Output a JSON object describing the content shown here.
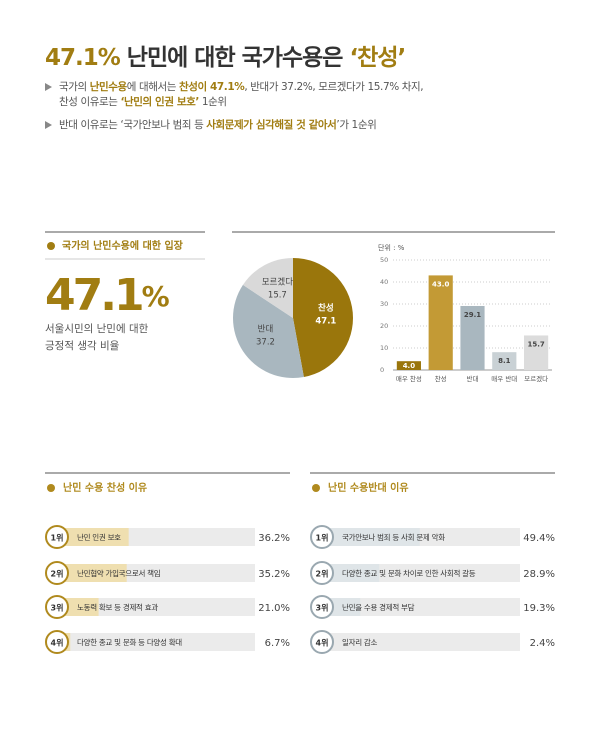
{
  "header": {
    "title": [
      {
        "text": "47.1%",
        "em": true
      },
      {
        "text": " 난민에 대한 국가수용은 "
      },
      {
        "text": "‘찬성’",
        "em": true
      }
    ],
    "bullets": [
      [
        [
          {
            "text": "국가의 "
          },
          {
            "text": "난민수용",
            "em": true
          },
          {
            "text": "에 대해서는 "
          },
          {
            "text": "찬성이 47.1%",
            "em": true
          },
          {
            "text": ", 반대가 37.2%, 모르겠다가 15.7% 차지,"
          }
        ],
        [
          {
            "text": "찬성 이유로는 "
          },
          {
            "text": "‘난민의 인권 보호’",
            "em": true
          },
          {
            "text": " 1순위"
          }
        ]
      ],
      [
        [
          {
            "text": "반대 이유로는 ‘국가안보나 범죄 등 "
          },
          {
            "text": "사회문제가 심각해질 것 같아서",
            "em": true
          },
          {
            "text": "’가 1순위"
          }
        ]
      ]
    ]
  },
  "stance": {
    "title": "국가의 난민수용에 대한 입장",
    "value": "47.1",
    "unit": "%",
    "desc": [
      "서울시민의 난민에 대한",
      "긍정적 생각 비율"
    ]
  },
  "chart_data": [
    {
      "type": "pie",
      "categories": [
        "찬성",
        "반대",
        "모르겠다"
      ],
      "values": [
        47.1,
        37.2,
        15.7
      ],
      "colors": [
        "#9a760c",
        "#a9b7bf",
        "#d9d9d9"
      ],
      "label_colors": [
        "#ffffff",
        "#444444",
        "#444444"
      ]
    },
    {
      "type": "bar",
      "unit_label": "단위 : %",
      "categories": [
        "매우 찬성",
        "찬성",
        "반대",
        "매우 반대",
        "모르겠다"
      ],
      "values": [
        4.0,
        43.0,
        29.1,
        8.1,
        15.7
      ],
      "value_labels": [
        "4.0",
        "43.0",
        "29.1",
        "8.1",
        "15.7"
      ],
      "colors": [
        "#9a760c",
        "#c39a35",
        "#a9b7bf",
        "#c9d1d5",
        "#dcdcdc"
      ],
      "label_colors": [
        "#ffffff",
        "#ffffff",
        "#444444",
        "#444444",
        "#444444"
      ],
      "ylim": [
        0,
        50
      ],
      "yticks": [
        0,
        10,
        20,
        30,
        40,
        50
      ],
      "grid": true
    },
    {
      "type": "hbar",
      "title": "난민 수용 찬성 이유",
      "ranks": [
        "1위",
        "2위",
        "3위",
        "4위"
      ],
      "categories": [
        "난민 인권 보호",
        "난민협약 가입국으로서 책임",
        "노동력 확보 등 경제적 효과",
        "다양한 종교 및 문화 등 다양성 확대"
      ],
      "values": [
        36.2,
        35.2,
        21.0,
        6.7
      ],
      "value_labels": [
        "36.2%",
        "35.2%",
        "21.0%",
        "6.7%"
      ],
      "xlim": [
        0,
        100
      ],
      "color": "#efdfb0",
      "track_color": "#ebebeb",
      "accent": "#b08a1e"
    },
    {
      "type": "hbar",
      "title": "난민 수용반대 이유",
      "ranks": [
        "1위",
        "2위",
        "3위",
        "4위"
      ],
      "categories": [
        "국가안보나 범죄 등 사회 문제 악화",
        "다양한 종교 및 문화 차이로 인한 사회적 갈등",
        "난민을 수용 경제적 부담",
        "일자리 감소"
      ],
      "values": [
        49.4,
        28.9,
        19.3,
        2.4
      ],
      "value_labels": [
        "49.4%",
        "28.9%",
        "19.3%",
        "2.4%"
      ],
      "xlim": [
        0,
        100
      ],
      "color": "#dfe5e8",
      "track_color": "#ebebeb",
      "accent": "#b08a1e"
    }
  ]
}
